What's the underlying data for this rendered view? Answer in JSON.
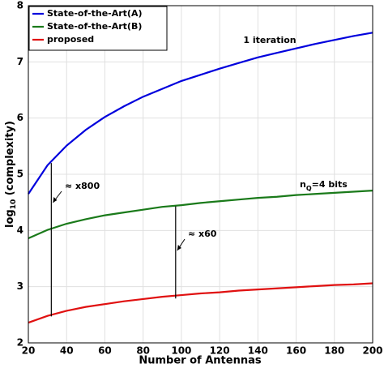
{
  "chart_data": {
    "type": "line",
    "x": [
      20,
      30,
      40,
      50,
      60,
      70,
      80,
      90,
      100,
      110,
      120,
      130,
      140,
      150,
      160,
      170,
      180,
      190,
      200
    ],
    "series": [
      {
        "name": "State-of-the-Art(A)",
        "color": "#0000dd",
        "values": [
          4.65,
          5.16,
          5.51,
          5.79,
          6.02,
          6.21,
          6.38,
          6.52,
          6.66,
          6.77,
          6.88,
          6.98,
          7.08,
          7.16,
          7.24,
          7.32,
          7.39,
          7.46,
          7.52
        ]
      },
      {
        "name": "State-of-the-Art(B)",
        "color": "#1a7a1a",
        "values": [
          3.86,
          4.01,
          4.12,
          4.2,
          4.27,
          4.32,
          4.37,
          4.42,
          4.45,
          4.49,
          4.52,
          4.55,
          4.58,
          4.6,
          4.63,
          4.65,
          4.67,
          4.69,
          4.71
        ]
      },
      {
        "name": "proposed",
        "color": "#e01010",
        "values": [
          2.36,
          2.48,
          2.57,
          2.64,
          2.69,
          2.74,
          2.78,
          2.82,
          2.85,
          2.88,
          2.9,
          2.93,
          2.95,
          2.97,
          2.99,
          3.01,
          3.03,
          3.04,
          3.06
        ]
      }
    ],
    "xlabel": "Number of Antennas",
    "ylabel": {
      "base": "log",
      "sub": "10",
      "rest": " (complexity)"
    },
    "xlim": [
      20,
      200
    ],
    "xticks": [
      20,
      40,
      60,
      80,
      100,
      120,
      140,
      160,
      180,
      200
    ],
    "ylim": [
      2,
      8
    ],
    "yticks": [
      2,
      3,
      4,
      5,
      6,
      7,
      8
    ],
    "grid": true,
    "legend": "top-left",
    "notes": [
      {
        "text": "1 iteration"
      },
      {
        "base": "n",
        "sub": "Q",
        "rest": "=4 bits"
      }
    ],
    "gaps": [
      {
        "text": "≈ x800",
        "x": 32,
        "top": 5.2,
        "bottom": 2.47
      },
      {
        "text": "≈ x60",
        "x": 97,
        "top": 4.43,
        "bottom": 2.79
      }
    ]
  }
}
